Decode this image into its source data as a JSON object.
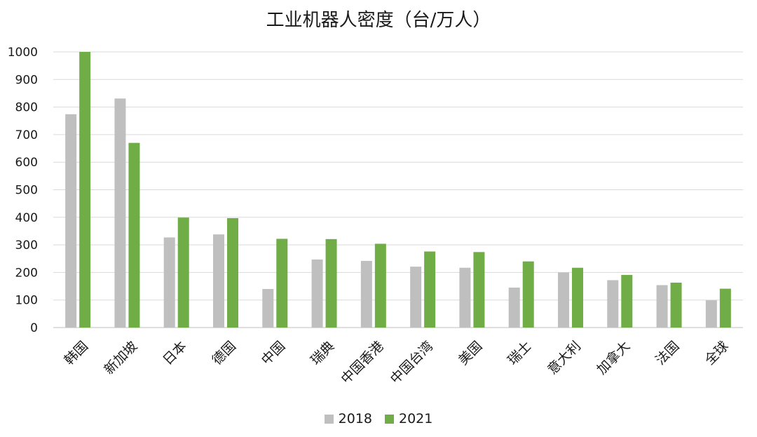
{
  "chart_data": {
    "type": "bar",
    "title": "工业机器人密度（台/万人）",
    "categories": [
      "韩国",
      "新加坡",
      "日本",
      "德国",
      "中国",
      "瑞典",
      "中国香港",
      "中国台湾",
      "美国",
      "瑞士",
      "意大利",
      "加拿大",
      "法国",
      "全球"
    ],
    "series": [
      {
        "name": "2018",
        "color": "#bfbfbf",
        "values": [
          774,
          831,
          327,
          338,
          140,
          247,
          242,
          221,
          217,
          145,
          200,
          172,
          154,
          99
        ]
      },
      {
        "name": "2021",
        "color": "#70ad47",
        "values": [
          1000,
          670,
          399,
          397,
          322,
          321,
          304,
          276,
          274,
          240,
          217,
          191,
          163,
          141
        ]
      }
    ],
    "ylim": [
      0,
      1000
    ],
    "yticks": [
      0,
      100,
      200,
      300,
      400,
      500,
      600,
      700,
      800,
      900,
      1000
    ],
    "grid": true,
    "legend_position": "bottom"
  }
}
